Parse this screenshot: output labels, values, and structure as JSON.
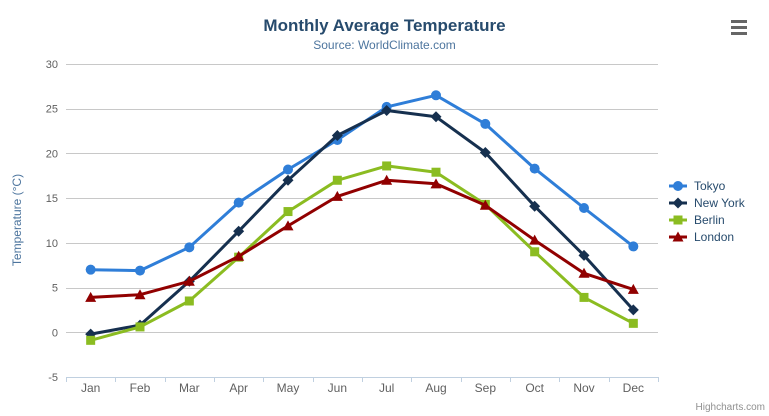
{
  "chart": {
    "credit": "Highcharts.com",
    "export_icon": "hamburger-menu-icon",
    "colors": {
      "title": "#274b6d",
      "subtitle": "#4d759e",
      "axis_labels": "#606060",
      "gridline": "#c8c8c8",
      "axis_line": "#c0d0e0",
      "legend_text": "#274b6d",
      "credit_text": "#909090"
    }
  },
  "chart_data": {
    "type": "line",
    "title": "Monthly Average Temperature",
    "subtitle": "Source: WorldClimate.com",
    "xlabel": "",
    "ylabel": "Temperature (°C)",
    "categories": [
      "Jan",
      "Feb",
      "Mar",
      "Apr",
      "May",
      "Jun",
      "Jul",
      "Aug",
      "Sep",
      "Oct",
      "Nov",
      "Dec"
    ],
    "yticks": [
      -5,
      0,
      5,
      10,
      15,
      20,
      25,
      30
    ],
    "ylim": [
      -5,
      30
    ],
    "grid": true,
    "legend_position": "right",
    "series": [
      {
        "name": "Tokyo",
        "color": "#2f7ed8",
        "marker": "circle",
        "values": [
          7.0,
          6.9,
          9.5,
          14.5,
          18.2,
          21.5,
          25.2,
          26.5,
          23.3,
          18.3,
          13.9,
          9.6
        ]
      },
      {
        "name": "New York",
        "color": "#16304f",
        "marker": "diamond",
        "values": [
          -0.2,
          0.8,
          5.7,
          11.3,
          17.0,
          22.0,
          24.8,
          24.1,
          20.1,
          14.1,
          8.6,
          2.5
        ]
      },
      {
        "name": "Berlin",
        "color": "#8bbc21",
        "marker": "square",
        "values": [
          -0.9,
          0.6,
          3.5,
          8.4,
          13.5,
          17.0,
          18.6,
          17.9,
          14.3,
          9.0,
          3.9,
          1.0
        ]
      },
      {
        "name": "London",
        "color": "#910000",
        "marker": "triangle",
        "values": [
          3.9,
          4.2,
          5.7,
          8.5,
          11.9,
          15.2,
          17.0,
          16.6,
          14.2,
          10.3,
          6.6,
          4.8
        ]
      }
    ]
  }
}
